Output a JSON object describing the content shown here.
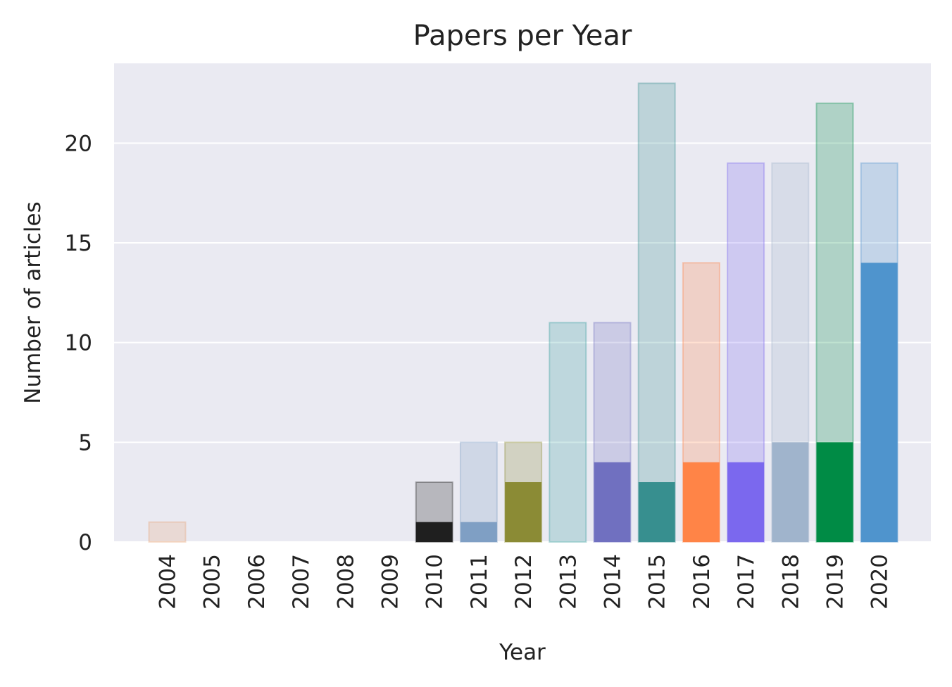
{
  "chart_data": {
    "type": "bar",
    "title": "Papers per Year",
    "xlabel": "Year",
    "ylabel": "Number of articles",
    "categories": [
      "2004",
      "2005",
      "2006",
      "2007",
      "2008",
      "2009",
      "2010",
      "2011",
      "2012",
      "2013",
      "2014",
      "2015",
      "2016",
      "2017",
      "2018",
      "2019",
      "2020"
    ],
    "series": [
      {
        "values": [
          1,
          0,
          0,
          0,
          0,
          0,
          3,
          5,
          5,
          11,
          11,
          23,
          14,
          19,
          19,
          22,
          19
        ]
      },
      {
        "values": [
          0,
          0,
          0,
          0,
          0,
          0,
          1,
          1,
          3,
          0,
          4,
          3,
          4,
          4,
          5,
          5,
          14
        ]
      }
    ],
    "colors": [
      "#e8a77a",
      "#e8a77a",
      "#e8a77a",
      "#e8a77a",
      "#e8a77a",
      "#e8a77a",
      "#1f1f1f",
      "#7f9fc4",
      "#8b8b35",
      "#3a9e9e",
      "#7070c0",
      "#378f8f",
      "#ff8447",
      "#7b68ee",
      "#a0b4cc",
      "#008b45",
      "#4f94cd"
    ],
    "ylim": [
      0,
      24
    ],
    "yticks": [
      0,
      5,
      10,
      15,
      20
    ],
    "grid": true,
    "legend": "none",
    "background": "#eaeaf2"
  }
}
